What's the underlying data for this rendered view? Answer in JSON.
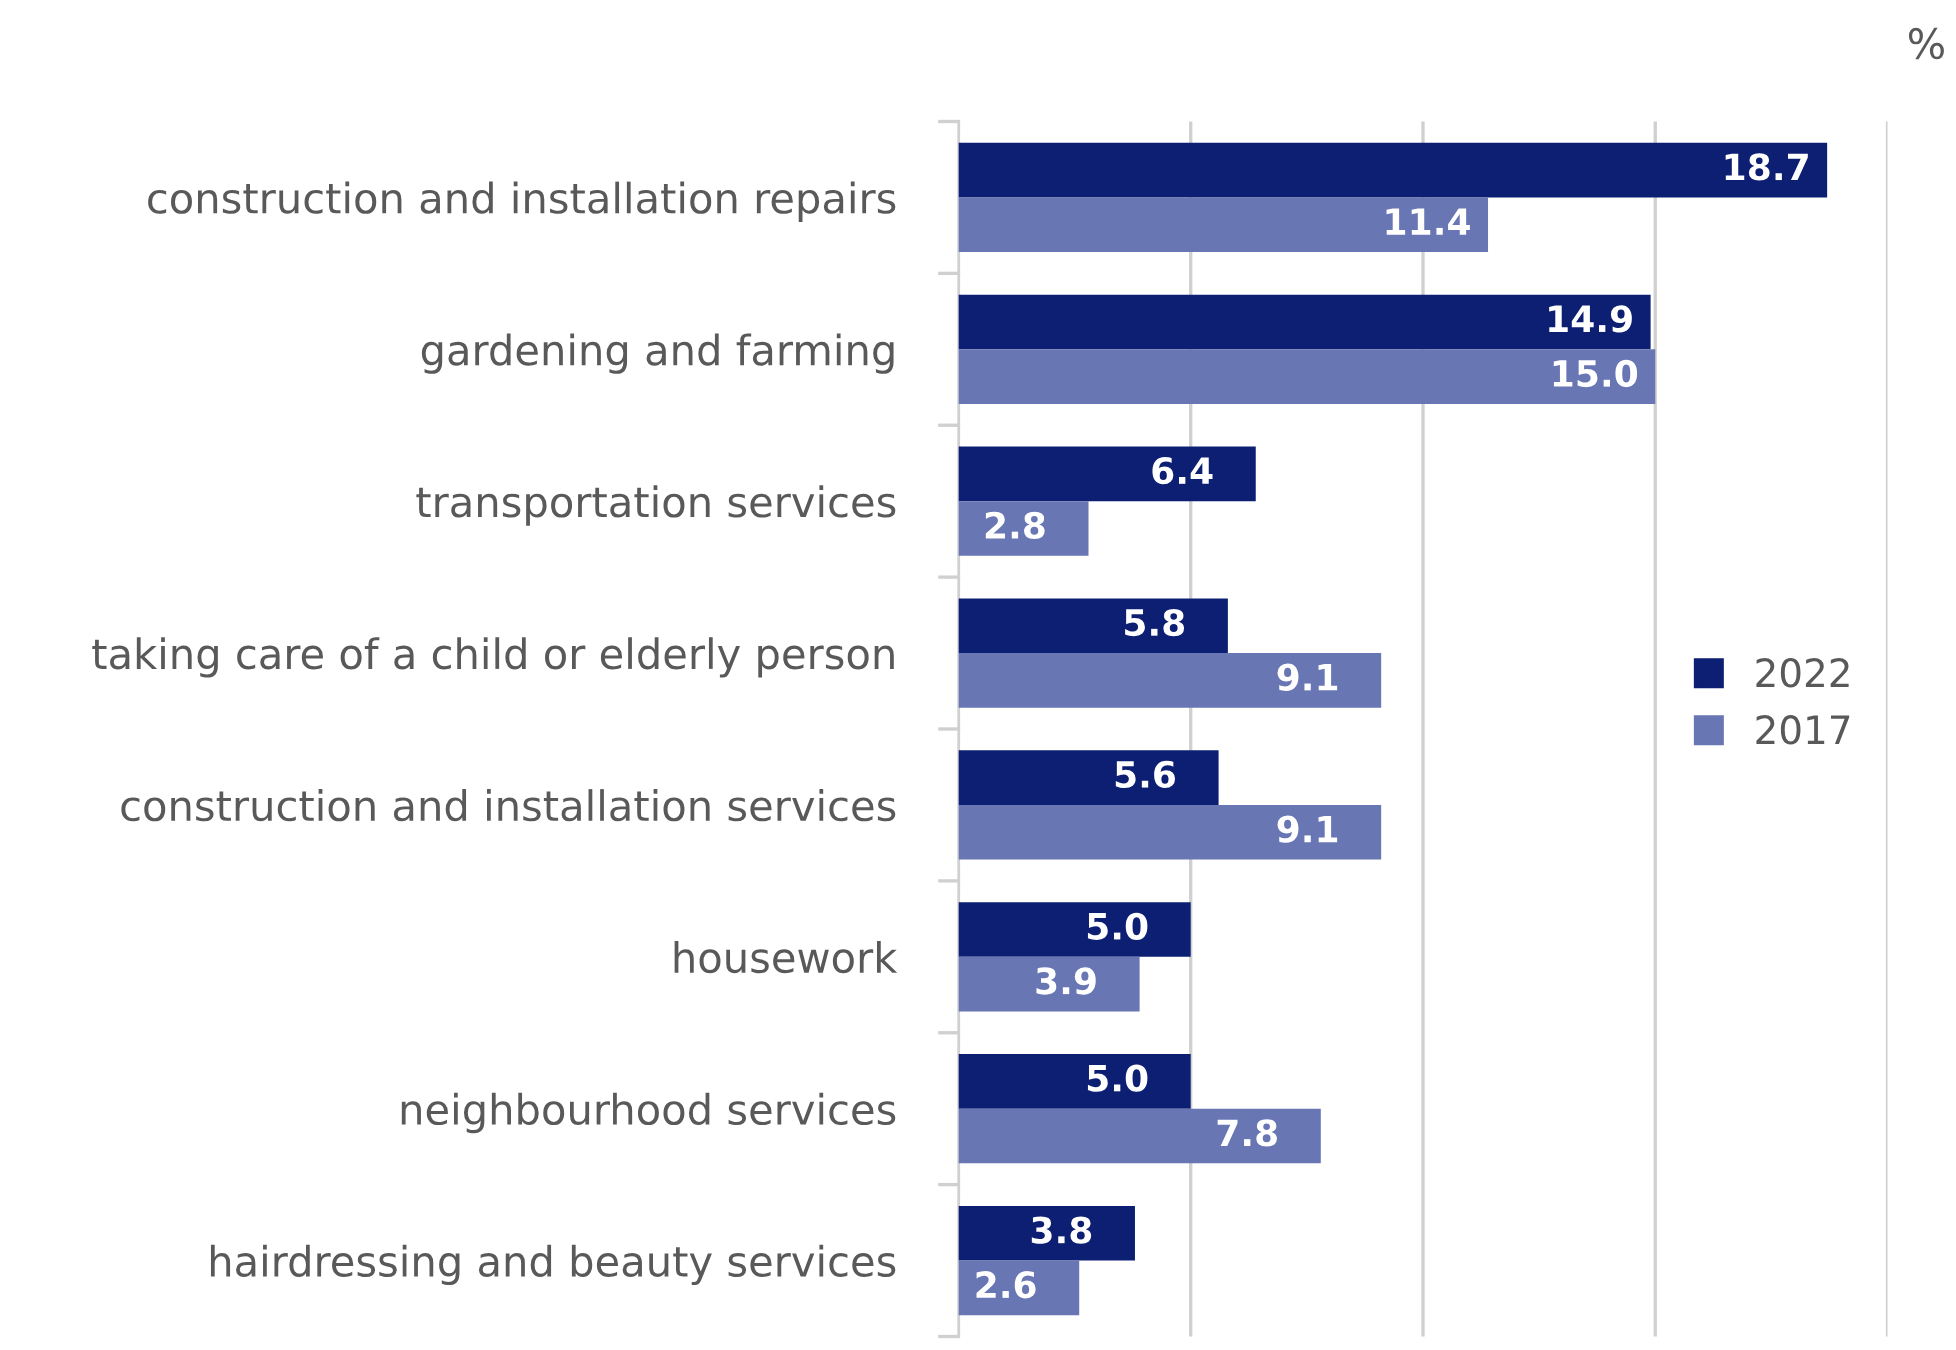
{
  "chart_data": {
    "type": "bar",
    "orientation": "horizontal",
    "categories": [
      "construction and installation repairs",
      "gardening and farming",
      "transportation services",
      "taking care of a child or elderly person",
      "construction and installation services",
      "housework",
      "neighbourhood services",
      "hairdressing and beauty services"
    ],
    "series": [
      {
        "name": "2022",
        "color": "#0d1f73",
        "values": [
          18.7,
          14.9,
          6.4,
          5.8,
          5.6,
          5.0,
          5.0,
          3.8
        ],
        "value_labels": [
          "18.7",
          "14.9",
          "6.4",
          "5.8",
          "5.6",
          "5.0",
          "5.0",
          "3.8"
        ]
      },
      {
        "name": "2017",
        "color": "#6876b4",
        "values": [
          11.4,
          15.0,
          2.8,
          9.1,
          9.1,
          3.9,
          7.8,
          2.6
        ],
        "value_labels": [
          "11.4",
          "15.0",
          "2.8",
          "9.1",
          "9.1",
          "3.9",
          "7.8",
          "2.6"
        ]
      }
    ],
    "xlim": [
      0,
      20
    ],
    "xticks": [
      {
        "value": 0,
        "label": null
      },
      {
        "value": 5,
        "label": null
      },
      {
        "value": 10,
        "label": null
      },
      {
        "value": 15,
        "label": null
      },
      {
        "value": 20,
        "label": null
      }
    ],
    "tick_labels": "y",
    "grid": "x",
    "legend": "right",
    "annotations": [
      "%"
    ]
  }
}
